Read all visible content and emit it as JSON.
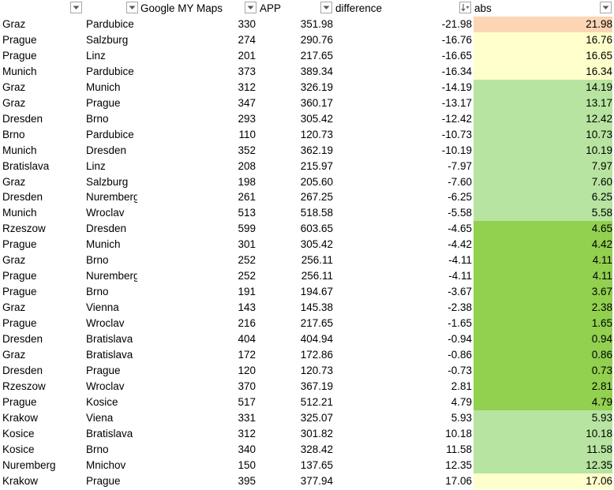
{
  "headers": {
    "col1": "",
    "col2": "",
    "col3": "Google MY Maps",
    "col4": "APP",
    "col5": "difference",
    "col6": "abs"
  },
  "colors": {
    "orange": "#fcd5b4",
    "yellow": "#ffffcc",
    "light_green": "#b7e4a0",
    "green": "#92d050"
  },
  "rows": [
    {
      "from": "Graz",
      "to": "Pardubice",
      "google": "330",
      "app": "351.98",
      "diff": "-21.98",
      "abs": "21.98",
      "fill": "orange"
    },
    {
      "from": "Prague",
      "to": "Salzburg",
      "google": "274",
      "app": "290.76",
      "diff": "-16.76",
      "abs": "16.76",
      "fill": "yellow"
    },
    {
      "from": "Prague",
      "to": "Linz",
      "google": "201",
      "app": "217.65",
      "diff": "-16.65",
      "abs": "16.65",
      "fill": "yellow"
    },
    {
      "from": "Munich",
      "to": "Pardubice",
      "google": "373",
      "app": "389.34",
      "diff": "-16.34",
      "abs": "16.34",
      "fill": "yellow"
    },
    {
      "from": "Graz",
      "to": "Munich",
      "google": "312",
      "app": "326.19",
      "diff": "-14.19",
      "abs": "14.19",
      "fill": "light_green"
    },
    {
      "from": "Graz",
      "to": "Prague",
      "google": "347",
      "app": "360.17",
      "diff": "-13.17",
      "abs": "13.17",
      "fill": "light_green"
    },
    {
      "from": "Dresden",
      "to": "Brno",
      "google": "293",
      "app": "305.42",
      "diff": "-12.42",
      "abs": "12.42",
      "fill": "light_green"
    },
    {
      "from": "Brno",
      "to": "Pardubice",
      "google": "110",
      "app": "120.73",
      "diff": "-10.73",
      "abs": "10.73",
      "fill": "light_green"
    },
    {
      "from": "Munich",
      "to": "Dresden",
      "google": "352",
      "app": "362.19",
      "diff": "-10.19",
      "abs": "10.19",
      "fill": "light_green"
    },
    {
      "from": "Bratislava",
      "to": "Linz",
      "google": "208",
      "app": "215.97",
      "diff": "-7.97",
      "abs": "7.97",
      "fill": "light_green"
    },
    {
      "from": "Graz",
      "to": "Salzburg",
      "google": "198",
      "app": "205.60",
      "diff": "-7.60",
      "abs": "7.60",
      "fill": "light_green"
    },
    {
      "from": "Dresden",
      "to": "Nuremberg",
      "google": "261",
      "app": "267.25",
      "diff": "-6.25",
      "abs": "6.25",
      "fill": "light_green"
    },
    {
      "from": "Munich",
      "to": "Wroclav",
      "google": "513",
      "app": "518.58",
      "diff": "-5.58",
      "abs": "5.58",
      "fill": "light_green"
    },
    {
      "from": "Rzeszow",
      "to": "Dresden",
      "google": "599",
      "app": "603.65",
      "diff": "-4.65",
      "abs": "4.65",
      "fill": "green"
    },
    {
      "from": "Prague",
      "to": "Munich",
      "google": "301",
      "app": "305.42",
      "diff": "-4.42",
      "abs": "4.42",
      "fill": "green"
    },
    {
      "from": "Graz",
      "to": "Brno",
      "google": "252",
      "app": "256.11",
      "diff": "-4.11",
      "abs": "4.11",
      "fill": "green"
    },
    {
      "from": "Prague",
      "to": "Nuremberg",
      "google": "252",
      "app": "256.11",
      "diff": "-4.11",
      "abs": "4.11",
      "fill": "green"
    },
    {
      "from": "Prague",
      "to": "Brno",
      "google": "191",
      "app": "194.67",
      "diff": "-3.67",
      "abs": "3.67",
      "fill": "green"
    },
    {
      "from": "Graz",
      "to": "Vienna",
      "google": "143",
      "app": "145.38",
      "diff": "-2.38",
      "abs": "2.38",
      "fill": "green"
    },
    {
      "from": "Prague",
      "to": "Wroclav",
      "google": "216",
      "app": "217.65",
      "diff": "-1.65",
      "abs": "1.65",
      "fill": "green"
    },
    {
      "from": "Dresden",
      "to": "Bratislava",
      "google": "404",
      "app": "404.94",
      "diff": "-0.94",
      "abs": "0.94",
      "fill": "green"
    },
    {
      "from": "Graz",
      "to": "Bratislava",
      "google": "172",
      "app": "172.86",
      "diff": "-0.86",
      "abs": "0.86",
      "fill": "green"
    },
    {
      "from": "Dresden",
      "to": "Prague",
      "google": "120",
      "app": "120.73",
      "diff": "-0.73",
      "abs": "0.73",
      "fill": "green"
    },
    {
      "from": "Rzeszow",
      "to": "Wroclav",
      "google": "370",
      "app": "367.19",
      "diff": "2.81",
      "abs": "2.81",
      "fill": "green"
    },
    {
      "from": "Prague",
      "to": "Kosice",
      "google": "517",
      "app": "512.21",
      "diff": "4.79",
      "abs": "4.79",
      "fill": "green"
    },
    {
      "from": "Krakow",
      "to": "Viena",
      "google": "331",
      "app": "325.07",
      "diff": "5.93",
      "abs": "5.93",
      "fill": "light_green"
    },
    {
      "from": "Kosice",
      "to": "Bratislava",
      "google": "312",
      "app": "301.82",
      "diff": "10.18",
      "abs": "10.18",
      "fill": "light_green"
    },
    {
      "from": "Kosice",
      "to": "Brno",
      "google": "340",
      "app": "328.42",
      "diff": "11.58",
      "abs": "11.58",
      "fill": "light_green"
    },
    {
      "from": "Nuremberg",
      "to": "Mnichov",
      "google": "150",
      "app": "137.65",
      "diff": "12.35",
      "abs": "12.35",
      "fill": "light_green"
    },
    {
      "from": "Krakow",
      "to": "Prague",
      "google": "395",
      "app": "377.94",
      "diff": "17.06",
      "abs": "17.06",
      "fill": "yellow"
    }
  ]
}
